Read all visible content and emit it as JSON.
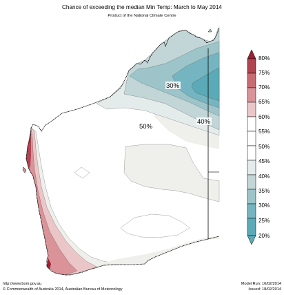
{
  "header": {
    "title": "Chance of exceeding the median Min Temp: March to May 2014",
    "subtitle": "Product of the National Climate Centre"
  },
  "map": {
    "region": "Western Australia",
    "contour_labels": [
      "30%",
      "40%",
      "50%"
    ],
    "colors": {
      "c20": "#5aaab8",
      "c25": "#75b5c1",
      "c30": "#9cc4c9",
      "c35": "#c2d6d8",
      "c40": "#e4ebeb",
      "c45": "#efefec",
      "c50": "#ffffff",
      "c55": "#ebc6c8",
      "c60": "#d99399",
      "c65": "#c96b72",
      "c75": "#b04450",
      "c80": "#a01f30"
    }
  },
  "legend": {
    "labels": [
      "80%",
      "75%",
      "70%",
      "65%",
      "60%",
      "55%",
      "50%",
      "45%",
      "40%",
      "35%",
      "30%",
      "25%",
      "20%"
    ]
  },
  "footer": {
    "url": "http://www.bom.gov.au",
    "copyright": "©  Commonwealth of Australia 2014, Australian Bureau of Meteorology",
    "model_run": "Model Run: 16/02/2014",
    "issued": "Issued: 18/02/2014"
  }
}
